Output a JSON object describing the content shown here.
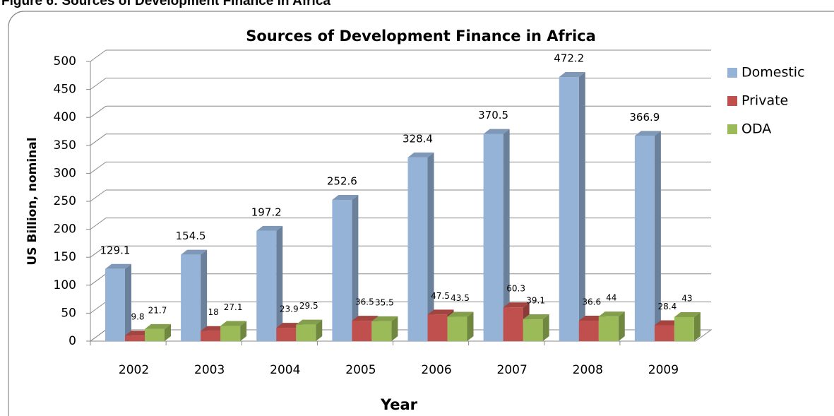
{
  "caption": "Figure 6: Sources of Development Finance in Africa",
  "chart_data": {
    "type": "bar3d",
    "title": "Sources of Development Finance in Africa",
    "x_label": "Year",
    "y_label": "US Billion, nominal",
    "categories": [
      "2002",
      "2003",
      "2004",
      "2005",
      "2006",
      "2007",
      "2008",
      "2009"
    ],
    "series": [
      {
        "name": "Domestic",
        "color": "#95b3d7",
        "values": [
          129.1,
          154.5,
          197.2,
          252.6,
          328.4,
          370.5,
          472.2,
          366.9
        ]
      },
      {
        "name": "Private",
        "color": "#c0504d",
        "values": [
          9.8,
          18,
          23.9,
          36.5,
          47.5,
          60.3,
          36.6,
          28.4
        ]
      },
      {
        "name": "ODA",
        "color": "#9bbb59",
        "values": [
          21.7,
          27.1,
          29.5,
          35.5,
          43.5,
          39.1,
          44,
          43
        ]
      }
    ],
    "ylim": [
      0,
      500
    ],
    "yticks": [
      0,
      50,
      100,
      150,
      200,
      250,
      300,
      350,
      400,
      450,
      500
    ],
    "grid": true,
    "legend": "right"
  }
}
